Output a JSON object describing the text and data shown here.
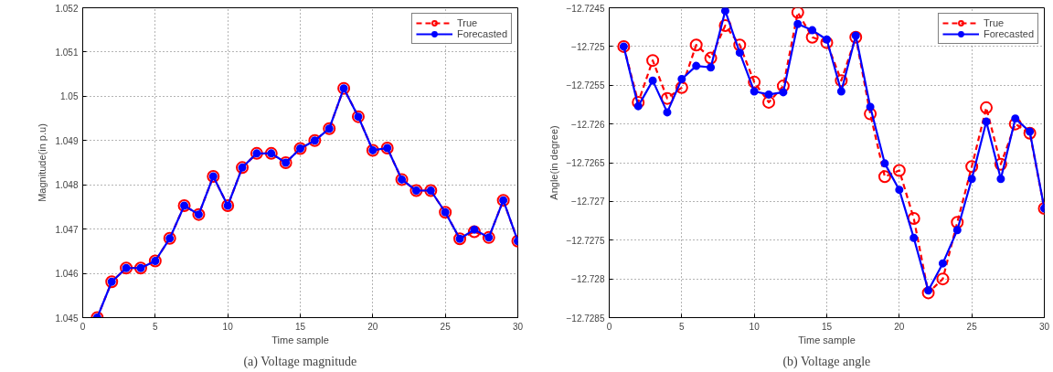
{
  "chart_data": [
    {
      "type": "line",
      "title": "(a) Voltage magnitude",
      "xlabel": "Time sample",
      "ylabel": "Magnitude(in p.u)",
      "x": [
        1,
        2,
        3,
        4,
        5,
        6,
        7,
        8,
        9,
        10,
        11,
        12,
        13,
        14,
        15,
        16,
        17,
        18,
        19,
        20,
        21,
        22,
        23,
        24,
        25,
        26,
        27,
        28,
        29,
        30
      ],
      "series": [
        {
          "name": "True",
          "color": "#ff0000",
          "marker": "circle",
          "line_style": "dashed",
          "values": [
            1.045,
            1.04581,
            1.04612,
            1.04612,
            1.04628,
            1.04679,
            1.04753,
            1.04733,
            1.04819,
            1.04753,
            1.04839,
            1.04871,
            1.04871,
            1.0485,
            1.04882,
            1.049,
            1.04927,
            1.05018,
            1.04954,
            1.04878,
            1.04883,
            1.04812,
            1.04787,
            1.04787,
            1.04738,
            1.04678,
            1.04694,
            1.04681,
            1.04765,
            1.04673
          ]
        },
        {
          "name": "Forecasted",
          "color": "#0000ff",
          "marker": "circle",
          "line_style": "solid",
          "values": [
            1.045,
            1.04581,
            1.04612,
            1.04612,
            1.04628,
            1.04679,
            1.04753,
            1.04733,
            1.04819,
            1.04753,
            1.04839,
            1.04871,
            1.04871,
            1.0485,
            1.04882,
            1.049,
            1.04927,
            1.05018,
            1.04954,
            1.04878,
            1.04883,
            1.04812,
            1.04787,
            1.04787,
            1.04738,
            1.04678,
            1.04699,
            1.04681,
            1.04765,
            1.04673
          ]
        }
      ],
      "xlim": [
        0,
        30
      ],
      "xticks": [
        0,
        5,
        10,
        15,
        20,
        25,
        30
      ],
      "ylim": [
        1.045,
        1.052
      ],
      "yticks": [
        1.045,
        1.046,
        1.047,
        1.048,
        1.049,
        1.05,
        1.051,
        1.052
      ],
      "grid": true,
      "legend": "top right"
    },
    {
      "type": "line",
      "title": "(b) Voltage angle",
      "xlabel": "Time sample",
      "ylabel": "Angle(in degree)",
      "x": [
        1,
        2,
        3,
        4,
        5,
        6,
        7,
        8,
        9,
        10,
        11,
        12,
        13,
        14,
        15,
        16,
        17,
        18,
        19,
        20,
        21,
        22,
        23,
        24,
        25,
        26,
        27,
        28,
        29,
        30
      ],
      "series": [
        {
          "name": "True",
          "color": "#ff0000",
          "marker": "circle",
          "line_style": "dashed",
          "values": [
            -12.725,
            -12.72572,
            -12.72518,
            -12.72567,
            -12.72553,
            -12.72498,
            -12.72515,
            -12.72473,
            -12.72498,
            -12.72546,
            -12.72572,
            -12.72551,
            -12.72456,
            -12.72488,
            -12.72495,
            -12.72544,
            -12.72488,
            -12.72587,
            -12.72668,
            -12.7266,
            -12.72722,
            -12.72818,
            -12.728,
            -12.72727,
            -12.72655,
            -12.72579,
            -12.72652,
            -12.726,
            -12.72612,
            -12.72709
          ]
        },
        {
          "name": "Forecasted",
          "color": "#0000ff",
          "marker": "circle",
          "line_style": "solid",
          "values": [
            -12.725,
            -12.72577,
            -12.72544,
            -12.72585,
            -12.72542,
            -12.72525,
            -12.72527,
            -12.72454,
            -12.72508,
            -12.72558,
            -12.72562,
            -12.72559,
            -12.72471,
            -12.72479,
            -12.72491,
            -12.72558,
            -12.72486,
            -12.72578,
            -12.72651,
            -12.72685,
            -12.72747,
            -12.72815,
            -12.7278,
            -12.72737,
            -12.72671,
            -12.72597,
            -12.72671,
            -12.72593,
            -12.7261,
            -12.72709
          ]
        }
      ],
      "xlim": [
        0,
        30
      ],
      "xticks": [
        0,
        5,
        10,
        15,
        20,
        25,
        30
      ],
      "ylim": [
        -12.7285,
        -12.7245
      ],
      "yticks": [
        {
          "value": -12.7285,
          "label": "−12.7285"
        },
        {
          "value": -12.728,
          "label": "−12.728"
        },
        {
          "value": -12.7275,
          "label": "−12.7275"
        },
        {
          "value": -12.727,
          "label": "−12.727"
        },
        {
          "value": -12.7265,
          "label": "−12.7265"
        },
        {
          "value": -12.726,
          "label": "−12.726"
        },
        {
          "value": -12.7255,
          "label": "−12.7255"
        },
        {
          "value": -12.725,
          "label": "−12.725"
        },
        {
          "value": -12.7245,
          "label": "−12.7245"
        }
      ],
      "grid": true,
      "legend": "top right"
    }
  ]
}
